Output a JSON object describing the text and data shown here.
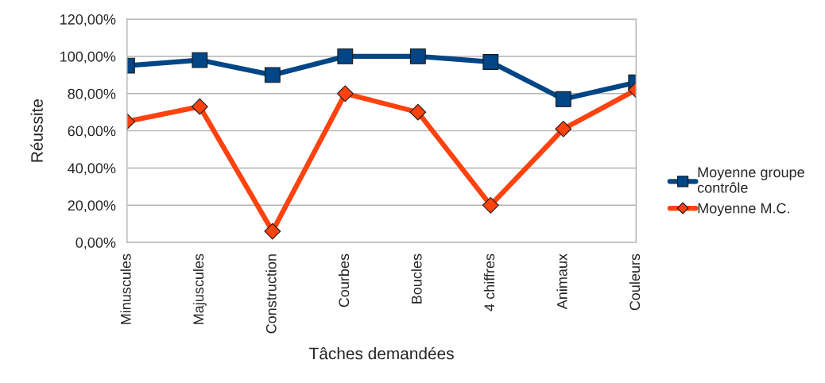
{
  "chart_data": {
    "type": "line",
    "xlabel": "Tâches demandées",
    "ylabel": "Réussite",
    "categories": [
      "Minuscules",
      "Majuscules",
      "Construction",
      "Courbes",
      "Boucles",
      "4 chiffres",
      "Animaux",
      "Couleurs"
    ],
    "ylim": [
      0,
      120
    ],
    "yticks": [
      {
        "value": 0,
        "label": "0,00%"
      },
      {
        "value": 20,
        "label": "20,00%"
      },
      {
        "value": 40,
        "label": "40,00%"
      },
      {
        "value": 60,
        "label": "60,00%"
      },
      {
        "value": 80,
        "label": "80,00%"
      },
      {
        "value": 100,
        "label": "100,00%"
      },
      {
        "value": 120,
        "label": "120,00%"
      }
    ],
    "grid": "y",
    "legend": "right",
    "line_style": "solid",
    "series": [
      {
        "name": "Moyenne groupe contrôle",
        "color": "#004586",
        "marker": "square",
        "values": [
          95,
          98,
          90,
          100,
          100,
          97,
          77,
          86
        ]
      },
      {
        "name": "Moyenne M.C.",
        "color": "#ff420e",
        "marker": "diamond",
        "values": [
          65,
          73,
          6,
          80,
          70,
          20,
          61,
          82
        ]
      }
    ]
  }
}
